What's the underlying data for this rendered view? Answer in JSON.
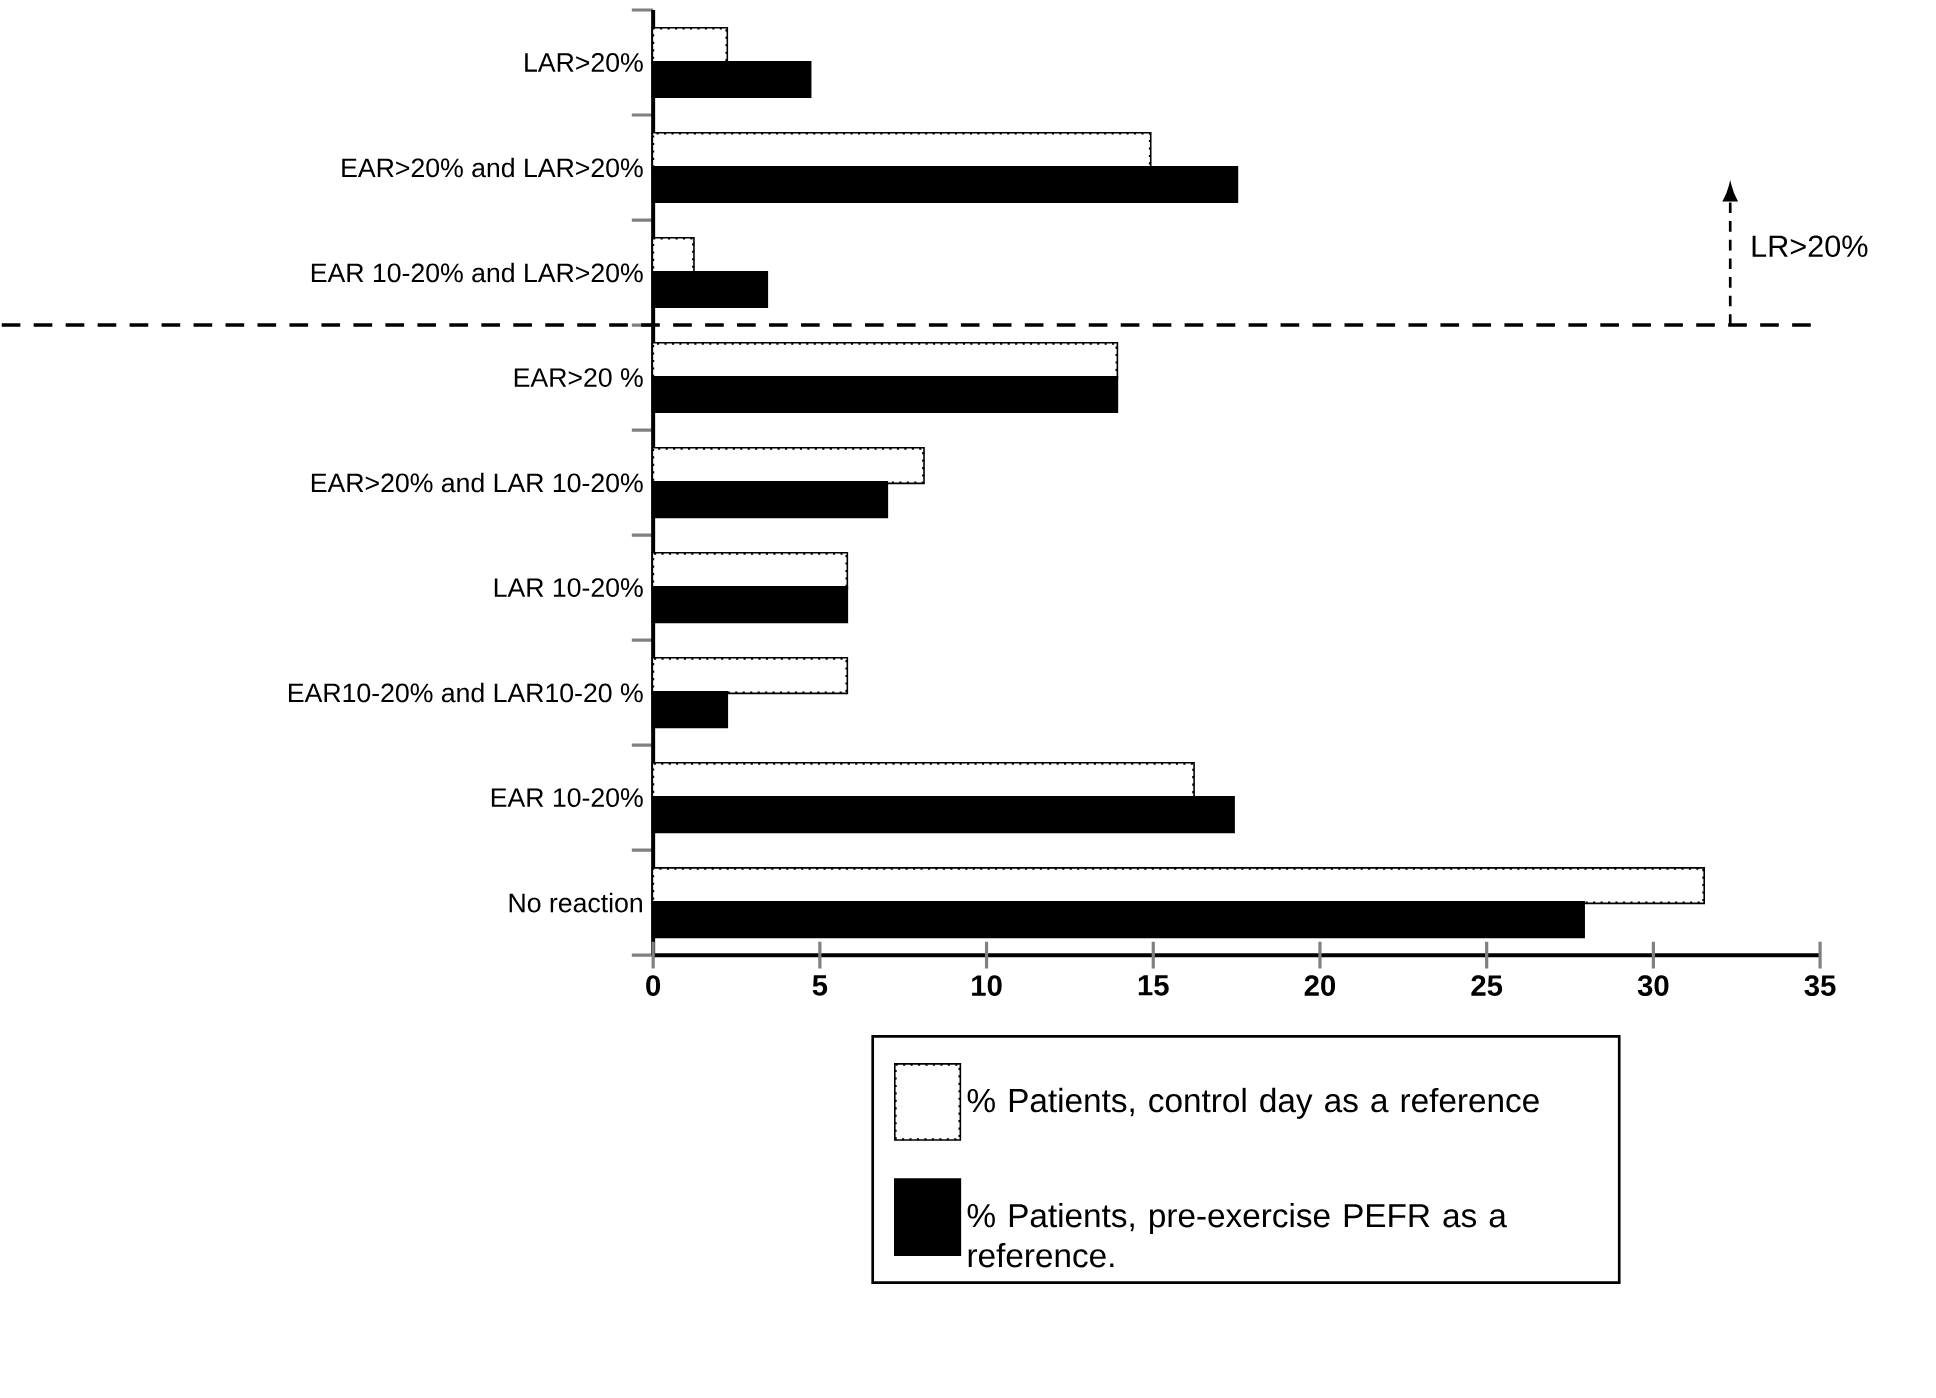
{
  "chart_data": {
    "type": "bar",
    "orientation": "horizontal",
    "categories": [
      "LAR>20%",
      "EAR>20% and LAR>20%",
      "EAR 10-20% and LAR>20%",
      "EAR>20 %",
      "EAR>20% and LAR 10-20%",
      "LAR  10-20%",
      "EAR10-20%  and LAR10-20 %",
      "EAR  10-20%",
      "No reaction"
    ],
    "series": [
      {
        "name": "% Patients, control day as a reference",
        "color": "#ffffff",
        "values": [
          2.2,
          14.9,
          1.2,
          13.9,
          8.1,
          5.8,
          5.8,
          16.2,
          31.5
        ]
      },
      {
        "name": "% Patients, pre-exercise PEFR as a reference.",
        "color": "#000000",
        "values": [
          4.7,
          17.5,
          3.4,
          13.9,
          7.0,
          5.8,
          2.2,
          17.4,
          27.9
        ]
      }
    ],
    "xlim": [
      0,
      35
    ],
    "xticks": [
      0,
      5,
      10,
      15,
      20,
      25,
      30,
      35
    ],
    "annotations": [
      "LR>20%"
    ],
    "legend": "bottom"
  }
}
